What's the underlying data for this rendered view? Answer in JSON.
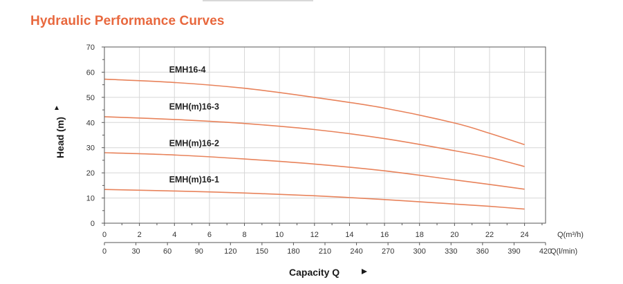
{
  "page_title": "Hydraulic Performance Curves",
  "colors": {
    "title": "#e8683e",
    "curve": "#e8825a",
    "grid": "#d6d6d6"
  },
  "chart_data": {
    "type": "line",
    "title": "Hydraulic Performance Curves",
    "ylabel": "Head (m)",
    "xlabel": "Capacity Q",
    "ylim": [
      0,
      70
    ],
    "yticks": [
      0,
      10,
      20,
      30,
      40,
      50,
      60,
      70
    ],
    "xlim": [
      0,
      25.2
    ],
    "xticks_m3h": [
      0,
      2,
      4,
      6,
      8,
      10,
      12,
      14,
      16,
      18,
      20,
      22,
      24
    ],
    "xticks_lmin": [
      0,
      30,
      60,
      90,
      120,
      150,
      180,
      210,
      240,
      270,
      300,
      330,
      360,
      390,
      420
    ],
    "x_unit_m3h": "Q(m³/h)",
    "x_unit_lmin": "Q(l/min)",
    "grid": true,
    "series": [
      {
        "name": "EMH16-4",
        "label_at": [
          3.7,
          59.8
        ],
        "points": [
          [
            0,
            57.2
          ],
          [
            4,
            55.9
          ],
          [
            8,
            53.6
          ],
          [
            12,
            50.0
          ],
          [
            16,
            45.7
          ],
          [
            20,
            39.8
          ],
          [
            22,
            35.7
          ],
          [
            24,
            31.2
          ]
        ]
      },
      {
        "name": "EMH(m)16-3",
        "label_at": [
          3.7,
          45.2
        ],
        "points": [
          [
            0,
            42.3
          ],
          [
            4,
            41.2
          ],
          [
            8,
            39.6
          ],
          [
            12,
            37.2
          ],
          [
            16,
            33.6
          ],
          [
            20,
            28.8
          ],
          [
            22,
            26.1
          ],
          [
            24,
            22.5
          ]
        ]
      },
      {
        "name": "EMH(m)16-2",
        "label_at": [
          3.7,
          30.6
        ],
        "points": [
          [
            0,
            28.0
          ],
          [
            4,
            27.1
          ],
          [
            8,
            25.5
          ],
          [
            12,
            23.5
          ],
          [
            16,
            20.8
          ],
          [
            20,
            17.2
          ],
          [
            22,
            15.4
          ],
          [
            24,
            13.5
          ]
        ]
      },
      {
        "name": "EMH(m)16-1",
        "label_at": [
          3.7,
          16.2
        ],
        "points": [
          [
            0,
            13.4
          ],
          [
            4,
            12.8
          ],
          [
            8,
            12.0
          ],
          [
            12,
            10.9
          ],
          [
            16,
            9.4
          ],
          [
            20,
            7.6
          ],
          [
            22,
            6.7
          ],
          [
            24,
            5.6
          ]
        ]
      }
    ]
  }
}
